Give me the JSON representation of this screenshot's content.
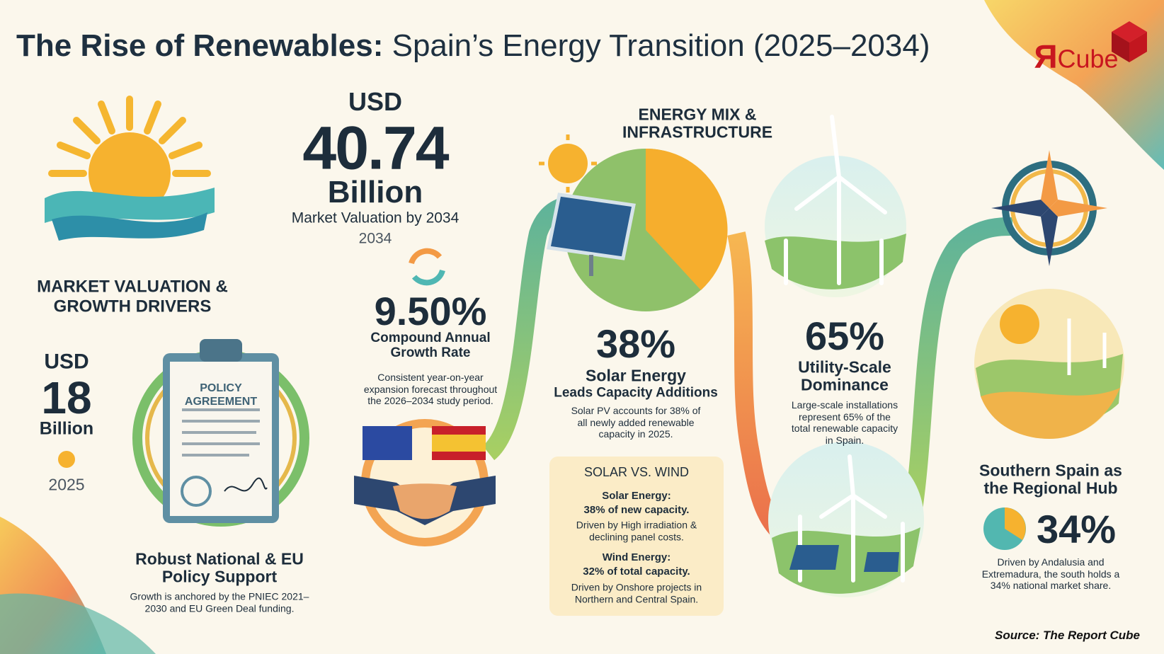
{
  "header": {
    "title_bold": "The Rise of Renewables:",
    "title_rest": "Spain’s Energy Transition (2025–2034)",
    "logo_mark": "Я",
    "logo_text": "Cube"
  },
  "valuation": {
    "currency": "USD",
    "amount": "40.74",
    "unit": "Billion",
    "caption": "Market Valuation by 2034",
    "year": "2034"
  },
  "drivers_heading": "MARKET VALUATION & GROWTH DRIVERS",
  "base": {
    "currency": "USD",
    "amount": "18",
    "unit": "Billion",
    "year": "2025"
  },
  "policy": {
    "doc_line1": "POLICY",
    "doc_line2": "AGREEMENT",
    "heading": "Robust National & EU Policy Support",
    "text": "Growth is anchored by the PNIEC 2021–2030 and EU Green Deal funding."
  },
  "cagr": {
    "value": "9.50%",
    "heading": "Compound Annual Growth Rate",
    "text": "Consistent year-on-year expansion forecast throughout the 2026–2034 study period."
  },
  "energy_mix": {
    "heading": "ENERGY MIX & INFRASTRUCTURE"
  },
  "solar": {
    "value": "38%",
    "heading_line1": "Solar Energy",
    "heading_line2": "Leads Capacity Additions",
    "text": "Solar PV accounts for 38% of all newly added renewable capacity in 2025."
  },
  "comparison": {
    "heading": "SOLAR VS. WIND",
    "items": [
      {
        "title": "Solar Energy:",
        "stat": "38% of new capacity.",
        "text": "Driven by High irradiation & declining panel costs."
      },
      {
        "title": "Wind Energy:",
        "stat": "32% of total capacity.",
        "text": "Driven by Onshore projects in Northern and Central Spain."
      }
    ]
  },
  "utility": {
    "value": "65%",
    "heading": "Utility-Scale Dominance",
    "text": "Large-scale installations represent 65% of the total renewable capacity in Spain."
  },
  "regional": {
    "heading": "Southern Spain as the Regional Hub",
    "value": "34%",
    "text": "Driven by Andalusia and Extremadura, the south holds a 34% national market share."
  },
  "source": "Source: The Report Cube"
}
